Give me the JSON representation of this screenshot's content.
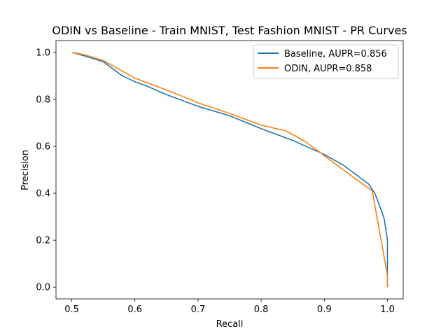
{
  "chart_data": {
    "type": "line",
    "title": "ODIN vs Baseline - Train MNIST, Test Fashion MNIST - PR Curves",
    "xlabel": "Recall",
    "ylabel": "Precision",
    "xlim": [
      0.475,
      1.025
    ],
    "ylim": [
      -0.05,
      1.05
    ],
    "xticks": [
      0.5,
      0.6,
      0.7,
      0.8,
      0.9,
      1.0
    ],
    "xtick_labels": [
      "0.5",
      "0.6",
      "0.7",
      "0.8",
      "0.9",
      "1.0"
    ],
    "yticks": [
      0.0,
      0.2,
      0.4,
      0.6,
      0.8,
      1.0
    ],
    "ytick_labels": [
      "0.0",
      "0.2",
      "0.4",
      "0.6",
      "0.8",
      "1.0"
    ],
    "grid": false,
    "legend_position": "top-right",
    "series": [
      {
        "name": "Baseline, AUPR=0.856",
        "color": "#1f77b4",
        "points": [
          [
            0.5,
            1.0
          ],
          [
            0.52,
            0.985
          ],
          [
            0.55,
            0.96
          ],
          [
            0.58,
            0.9
          ],
          [
            0.6,
            0.875
          ],
          [
            0.62,
            0.855
          ],
          [
            0.65,
            0.82
          ],
          [
            0.7,
            0.77
          ],
          [
            0.75,
            0.73
          ],
          [
            0.8,
            0.675
          ],
          [
            0.85,
            0.625
          ],
          [
            0.9,
            0.565
          ],
          [
            0.93,
            0.52
          ],
          [
            0.95,
            0.48
          ],
          [
            0.97,
            0.44
          ],
          [
            0.98,
            0.4
          ],
          [
            0.99,
            0.33
          ],
          [
            0.995,
            0.29
          ],
          [
            1.0,
            0.2
          ],
          [
            1.0,
            0.0
          ]
        ]
      },
      {
        "name": "ODIN, AUPR=0.858",
        "color": "#ff7f0e",
        "points": [
          [
            0.5,
            1.0
          ],
          [
            0.52,
            0.99
          ],
          [
            0.55,
            0.965
          ],
          [
            0.6,
            0.89
          ],
          [
            0.65,
            0.84
          ],
          [
            0.7,
            0.785
          ],
          [
            0.75,
            0.74
          ],
          [
            0.8,
            0.69
          ],
          [
            0.84,
            0.665
          ],
          [
            0.87,
            0.62
          ],
          [
            0.9,
            0.56
          ],
          [
            0.93,
            0.5
          ],
          [
            0.95,
            0.46
          ],
          [
            0.976,
            0.41
          ],
          [
            0.99,
            0.2
          ],
          [
            1.0,
            0.05
          ],
          [
            1.0,
            0.0
          ]
        ]
      }
    ]
  }
}
